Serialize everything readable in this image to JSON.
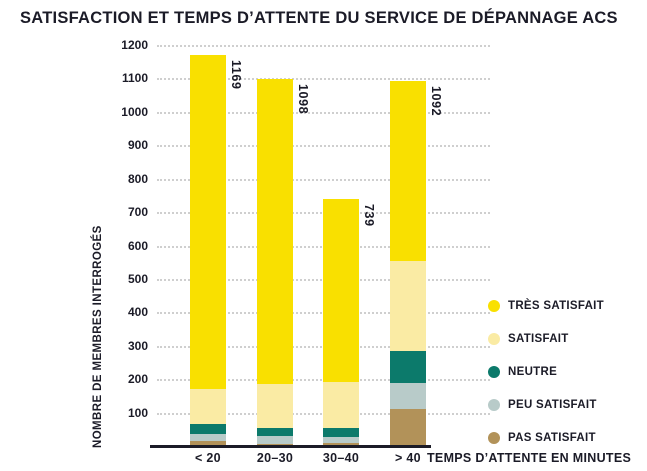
{
  "chart_data": {
    "type": "bar",
    "stacked": true,
    "title": "SATISFACTION ET TEMPS D’ATTENTE DU SERVICE DE DÉPANNAGE ACS",
    "xlabel": "TEMPS D’ATTENTE EN MINUTES",
    "ylabel": "NOMBRE DE MEMBRES INTERROGÉS",
    "categories": [
      "< 20",
      "20–30",
      "30–40",
      "> 40"
    ],
    "totals": [
      1169,
      1098,
      739,
      1092
    ],
    "series": [
      {
        "name": "PAS SATISFAIT",
        "color": "#b29259",
        "values": [
          15,
          5,
          10,
          110
        ]
      },
      {
        "name": "PEU SATISFAIT",
        "color": "#b8cbc9",
        "values": [
          20,
          25,
          18,
          80
        ]
      },
      {
        "name": "NEUTRE",
        "color": "#0c7a6b",
        "values": [
          30,
          25,
          25,
          95
        ]
      },
      {
        "name": "SATISFAIT",
        "color": "#faeba4",
        "values": [
          105,
          130,
          140,
          270
        ]
      },
      {
        "name": "TRÈS SATISFAIT",
        "color": "#f9e000",
        "values": [
          999,
          913,
          546,
          537
        ]
      }
    ],
    "legend": [
      {
        "label": "TRÈS SATISFAIT",
        "color": "#f9e000"
      },
      {
        "label": "SATISFAIT",
        "color": "#faeba4"
      },
      {
        "label": "NEUTRE",
        "color": "#0c7a6b"
      },
      {
        "label": "PEU SATISFAIT",
        "color": "#b8cbc9"
      },
      {
        "label": "PAS SATISFAIT",
        "color": "#b29259"
      }
    ],
    "legend_position": "right",
    "ylim": [
      0,
      1200
    ],
    "ytick_step": 100,
    "grid": "dotted-horizontal",
    "colors": {
      "text": "#1b1b27",
      "grid": "#cfcfcf",
      "axis": "#1b1b27",
      "background": "#ffffff"
    }
  }
}
